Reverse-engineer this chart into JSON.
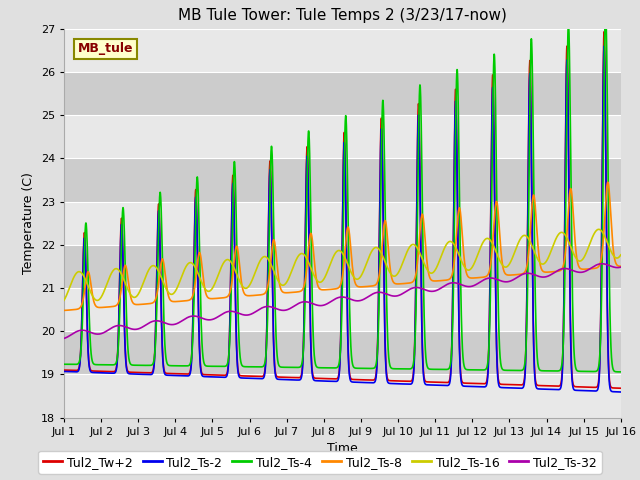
{
  "title": "MB Tule Tower: Tule Temps 2 (3/23/17-now)",
  "xlabel": "Time",
  "ylabel": "Temperature (C)",
  "ylim": [
    18.0,
    27.0
  ],
  "xlim": [
    1,
    16
  ],
  "yticks": [
    18.0,
    19.0,
    20.0,
    21.0,
    22.0,
    23.0,
    24.0,
    25.0,
    26.0,
    27.0
  ],
  "xtick_labels": [
    "Jul 1",
    "Jul 2",
    "Jul 3",
    "Jul 4",
    "Jul 5",
    "Jul 6",
    "Jul 7",
    "Jul 8",
    "Jul 9",
    "Jul 10",
    "Jul 11",
    "Jul 12",
    "Jul 13",
    "Jul 14",
    "Jul 15",
    "Jul 16"
  ],
  "xtick_positions": [
    1,
    2,
    3,
    4,
    5,
    6,
    7,
    8,
    9,
    10,
    11,
    12,
    13,
    14,
    15,
    16
  ],
  "series_labels": [
    "Tul2_Tw+2",
    "Tul2_Ts-2",
    "Tul2_Ts-4",
    "Tul2_Ts-8",
    "Tul2_Ts-16",
    "Tul2_Ts-32"
  ],
  "series_colors": [
    "#dd0000",
    "#0000ee",
    "#00cc00",
    "#ff8800",
    "#cccc00",
    "#aa00aa"
  ],
  "bg_color": "#e0e0e0",
  "plot_bg_color": "#e0e0e0",
  "stripe_color_dark": "#cccccc",
  "stripe_color_light": "#e8e8e8",
  "legend_label": "MB_tule",
  "legend_bg": "#ffffcc",
  "legend_edge": "#888800",
  "legend_text_color": "#880000",
  "title_fontsize": 11,
  "axis_label_fontsize": 9,
  "tick_fontsize": 8,
  "legend_fontsize": 9,
  "grid_color": "#ffffff",
  "linewidth": 1.2
}
